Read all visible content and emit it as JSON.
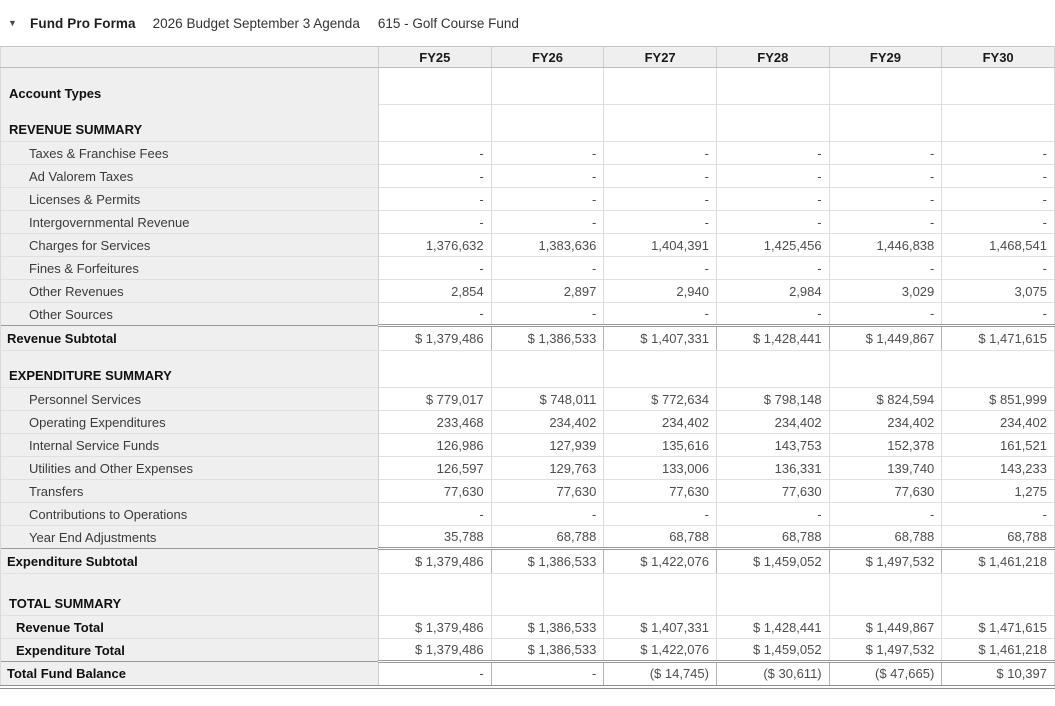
{
  "header": {
    "collapse_icon": "▼",
    "title": "Fund Pro Forma",
    "budget_label": "2026 Budget September 3 Agenda",
    "fund_label": "615 - Golf Course Fund"
  },
  "table": {
    "columns": [
      "FY25",
      "FY26",
      "FY27",
      "FY28",
      "FY29",
      "FY30"
    ],
    "rows": [
      {
        "label": "Account Types",
        "type": "section",
        "values": [
          "",
          "",
          "",
          "",
          "",
          ""
        ]
      },
      {
        "label": "REVENUE SUMMARY",
        "type": "section",
        "values": [
          "",
          "",
          "",
          "",
          "",
          ""
        ]
      },
      {
        "label": "Taxes & Franchise Fees",
        "type": "item",
        "values": [
          "-",
          "-",
          "-",
          "-",
          "-",
          "-"
        ]
      },
      {
        "label": "Ad Valorem Taxes",
        "type": "item",
        "values": [
          "-",
          "-",
          "-",
          "-",
          "-",
          "-"
        ]
      },
      {
        "label": "Licenses & Permits",
        "type": "item",
        "values": [
          "-",
          "-",
          "-",
          "-",
          "-",
          "-"
        ]
      },
      {
        "label": "Intergovernmental Revenue",
        "type": "item",
        "values": [
          "-",
          "-",
          "-",
          "-",
          "-",
          "-"
        ]
      },
      {
        "label": "Charges for Services",
        "type": "item",
        "values": [
          "1,376,632",
          "1,383,636",
          "1,404,391",
          "1,425,456",
          "1,446,838",
          "1,468,541"
        ]
      },
      {
        "label": "Fines & Forfeitures",
        "type": "item",
        "values": [
          "-",
          "-",
          "-",
          "-",
          "-",
          "-"
        ]
      },
      {
        "label": "Other Revenues",
        "type": "item",
        "values": [
          "2,854",
          "2,897",
          "2,940",
          "2,984",
          "3,029",
          "3,075"
        ]
      },
      {
        "label": "Other Sources",
        "type": "item",
        "values": [
          "-",
          "-",
          "-",
          "-",
          "-",
          "-"
        ]
      },
      {
        "label": "Revenue Subtotal",
        "type": "subtotal",
        "values": [
          "$ 1,379,486",
          "$ 1,386,533",
          "$ 1,407,331",
          "$ 1,428,441",
          "$ 1,449,867",
          "$ 1,471,615"
        ]
      },
      {
        "label": "EXPENDITURE SUMMARY",
        "type": "section",
        "values": [
          "",
          "",
          "",
          "",
          "",
          ""
        ]
      },
      {
        "label": "Personnel Services",
        "type": "item",
        "values": [
          "$ 779,017",
          "$ 748,011",
          "$ 772,634",
          "$ 798,148",
          "$ 824,594",
          "$ 851,999"
        ]
      },
      {
        "label": "Operating Expenditures",
        "type": "item",
        "values": [
          "233,468",
          "234,402",
          "234,402",
          "234,402",
          "234,402",
          "234,402"
        ]
      },
      {
        "label": "Internal Service Funds",
        "type": "item",
        "values": [
          "126,986",
          "127,939",
          "135,616",
          "143,753",
          "152,378",
          "161,521"
        ]
      },
      {
        "label": "Utilities and Other Expenses",
        "type": "item",
        "values": [
          "126,597",
          "129,763",
          "133,006",
          "136,331",
          "139,740",
          "143,233"
        ]
      },
      {
        "label": "Transfers",
        "type": "item",
        "values": [
          "77,630",
          "77,630",
          "77,630",
          "77,630",
          "77,630",
          "1,275"
        ]
      },
      {
        "label": "Contributions to Operations",
        "type": "item",
        "values": [
          "-",
          "-",
          "-",
          "-",
          "-",
          "-"
        ]
      },
      {
        "label": "Year End Adjustments",
        "type": "item",
        "values": [
          "35,788",
          "68,788",
          "68,788",
          "68,788",
          "68,788",
          "68,788"
        ]
      },
      {
        "label": "Expenditure Subtotal",
        "type": "subtotal",
        "values": [
          "$ 1,379,486",
          "$ 1,386,533",
          "$ 1,422,076",
          "$ 1,459,052",
          "$ 1,497,532",
          "$ 1,461,218"
        ]
      },
      {
        "label": "TOTAL SUMMARY",
        "type": "section-tall",
        "values": [
          "",
          "",
          "",
          "",
          "",
          ""
        ]
      },
      {
        "label": "Revenue Total",
        "type": "total-item",
        "values": [
          "$ 1,379,486",
          "$ 1,386,533",
          "$ 1,407,331",
          "$ 1,428,441",
          "$ 1,449,867",
          "$ 1,471,615"
        ]
      },
      {
        "label": "Expenditure Total",
        "type": "total-item",
        "values": [
          "$ 1,379,486",
          "$ 1,386,533",
          "$ 1,422,076",
          "$ 1,459,052",
          "$ 1,497,532",
          "$ 1,461,218"
        ]
      },
      {
        "label": "Total Fund Balance",
        "type": "grand",
        "values": [
          "-",
          "-",
          "($ 14,745)",
          "($ 30,611)",
          "($ 47,665)",
          "$ 10,397"
        ]
      }
    ]
  }
}
